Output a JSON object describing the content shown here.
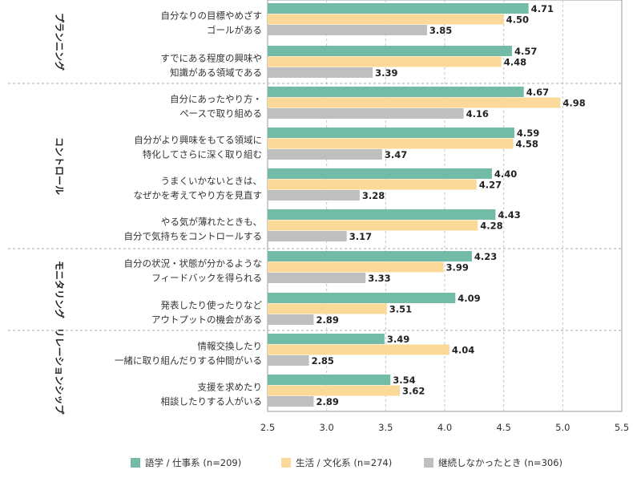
{
  "chart_data": {
    "type": "bar",
    "orientation": "horizontal",
    "xlim": [
      2.5,
      5.5
    ],
    "ticks": [
      "2.5",
      "3.0",
      "3.5",
      "4.0",
      "4.5",
      "5.0",
      "5.5"
    ],
    "grid": true,
    "legend_position": "bottom",
    "series": [
      {
        "name": "語学 / 仕事系 (n=209)",
        "color": "#72bba7"
      },
      {
        "name": "生活 / 文化系 (n=274)",
        "color": "#fad999"
      },
      {
        "name": "継続しなかったとき (n=306)",
        "color": "#bfbfbf"
      }
    ],
    "groups": [
      {
        "label": "プランニング",
        "items": [
          0,
          1
        ]
      },
      {
        "label": "コントロール",
        "items": [
          2,
          3,
          4,
          5
        ]
      },
      {
        "label": "モニタリング",
        "items": [
          6,
          7
        ]
      },
      {
        "label": "リレーションシップ",
        "items": [
          8,
          9
        ]
      }
    ],
    "categories": [
      {
        "lines": [
          "自分なりの目標やめざす",
          "ゴールがある"
        ],
        "values": [
          4.71,
          4.5,
          3.85
        ],
        "labels": [
          "4.71",
          "4.50",
          "3.85"
        ]
      },
      {
        "lines": [
          "すでにある程度の興味や",
          "知識がある領域である"
        ],
        "values": [
          4.57,
          4.48,
          3.39
        ],
        "labels": [
          "4.57",
          "4.48",
          "3.39"
        ]
      },
      {
        "lines": [
          "自分にあったやり方・",
          "ペースで取り組める"
        ],
        "values": [
          4.67,
          4.98,
          4.16
        ],
        "labels": [
          "4.67",
          "4.98",
          "4.16"
        ]
      },
      {
        "lines": [
          "自分がより興味をもてる領域に",
          "特化してさらに深く取り組む"
        ],
        "values": [
          4.59,
          4.58,
          3.47
        ],
        "labels": [
          "4.59",
          "4.58",
          "3.47"
        ]
      },
      {
        "lines": [
          "うまくいかないときは、",
          "なぜかを考えてやり方を見直す"
        ],
        "values": [
          4.4,
          4.27,
          3.28
        ],
        "labels": [
          "4.40",
          "4.27",
          "3.28"
        ]
      },
      {
        "lines": [
          "やる気が薄れたときも、",
          "自分で気持ちをコントロールする"
        ],
        "values": [
          4.43,
          4.28,
          3.17
        ],
        "labels": [
          "4.43",
          "4.28",
          "3.17"
        ]
      },
      {
        "lines": [
          "自分の状況・状態が分かるような",
          "フィードバックを得られる"
        ],
        "values": [
          4.23,
          3.99,
          3.33
        ],
        "labels": [
          "4.23",
          "3.99",
          "3.33"
        ]
      },
      {
        "lines": [
          "発表したり使ったりなど",
          "アウトプットの機会がある"
        ],
        "values": [
          4.09,
          3.51,
          2.89
        ],
        "labels": [
          "4.09",
          "3.51",
          "2.89"
        ]
      },
      {
        "lines": [
          "情報交換したり",
          "一緒に取り組んだりする仲間がいる"
        ],
        "values": [
          3.49,
          4.04,
          2.85
        ],
        "labels": [
          "3.49",
          "4.04",
          "2.85"
        ]
      },
      {
        "lines": [
          "支援を求めたり",
          "相談したりする人がいる"
        ],
        "values": [
          3.54,
          3.62,
          2.89
        ],
        "labels": [
          "3.54",
          "3.62",
          "2.89"
        ]
      }
    ]
  }
}
